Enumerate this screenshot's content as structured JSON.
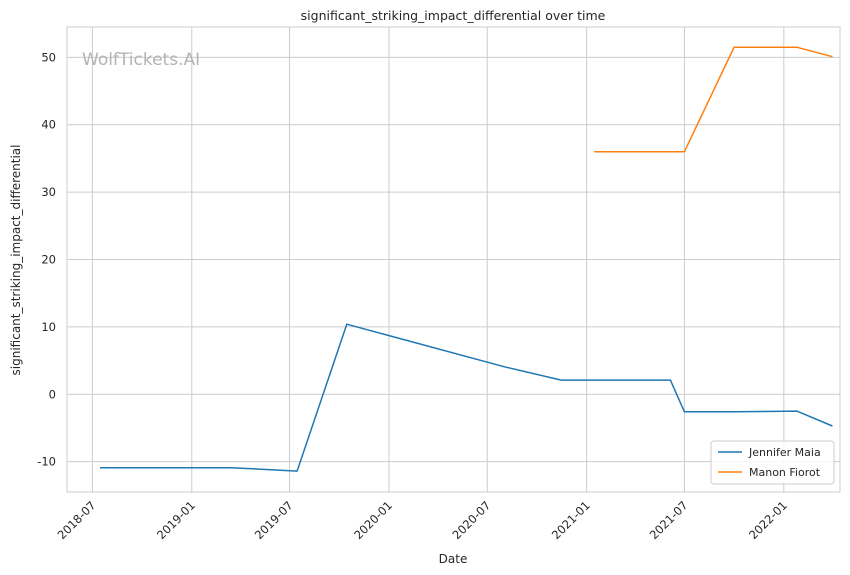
{
  "chart_data": {
    "type": "line",
    "title": "significant_striking_impact_differential over time",
    "xlabel": "Date",
    "ylabel": "significant_striking_impact_differential",
    "watermark": "WolfTickets.AI",
    "x_ticks": [
      "2018-07",
      "2019-01",
      "2019-07",
      "2020-01",
      "2020-07",
      "2021-01",
      "2021-07",
      "2022-01"
    ],
    "y_ticks": [
      -10,
      0,
      10,
      20,
      30,
      40,
      50
    ],
    "xlim": [
      "2018-05-15",
      "2022-04-15"
    ],
    "ylim": [
      -14.5,
      54.5
    ],
    "grid": true,
    "legend_position": "bottom-right",
    "series": [
      {
        "name": "Jennifer Maia",
        "color": "#1f77b4",
        "points": [
          {
            "x": "2018-07-15",
            "y": -10.9
          },
          {
            "x": "2019-03-15",
            "y": -10.9
          },
          {
            "x": "2019-07-15",
            "y": -11.4
          },
          {
            "x": "2019-10-15",
            "y": 10.4
          },
          {
            "x": "2020-08-01",
            "y": 4.1
          },
          {
            "x": "2020-11-15",
            "y": 2.1
          },
          {
            "x": "2021-06-05",
            "y": 2.1
          },
          {
            "x": "2021-07-01",
            "y": -2.6
          },
          {
            "x": "2021-10-01",
            "y": -2.6
          },
          {
            "x": "2022-01-25",
            "y": -2.5
          },
          {
            "x": "2022-04-01",
            "y": -4.7
          }
        ]
      },
      {
        "name": "Manon Fiorot",
        "color": "#ff7f0e",
        "points": [
          {
            "x": "2021-01-15",
            "y": 36.0
          },
          {
            "x": "2021-07-01",
            "y": 36.0
          },
          {
            "x": "2021-10-01",
            "y": 51.5
          },
          {
            "x": "2022-01-25",
            "y": 51.5
          },
          {
            "x": "2022-04-01",
            "y": 50.1
          }
        ]
      }
    ]
  }
}
